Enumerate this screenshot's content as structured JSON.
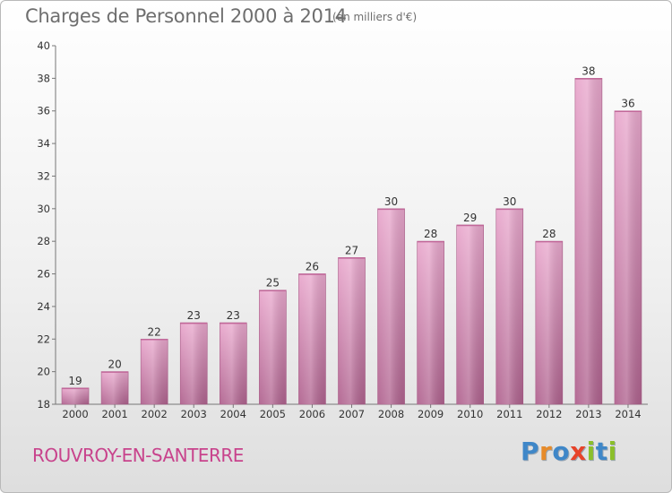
{
  "title": "Charges de Personnel 2000 à 2014",
  "unit_note": "(en milliers d'€)",
  "commune": "ROUVROY-EN-SANTERRE",
  "logo": {
    "text": "Proxiti",
    "letters": [
      {
        "char": "P",
        "color": "#3f87c8"
      },
      {
        "char": "r",
        "color": "#e78b2a"
      },
      {
        "char": "o",
        "color": "#3f87c8"
      },
      {
        "char": "x",
        "color": "#e7432a"
      },
      {
        "char": "i",
        "color": "#8bbf2a"
      },
      {
        "char": "t",
        "color": "#3f87c8"
      },
      {
        "char": "i",
        "color": "#8bbf2a"
      }
    ]
  },
  "colors": {
    "bar_light": "#e9a8cd",
    "bar_dark": "#b0638f",
    "title": "#6e6e6e",
    "commune": "#c8438c"
  },
  "chart_data": {
    "type": "bar",
    "categories": [
      "2000",
      "2001",
      "2002",
      "2003",
      "2004",
      "2005",
      "2006",
      "2007",
      "2008",
      "2009",
      "2010",
      "2011",
      "2012",
      "2013",
      "2014"
    ],
    "values": [
      19,
      20,
      22,
      23,
      23,
      25,
      26,
      27,
      30,
      28,
      29,
      30,
      28,
      38,
      36
    ],
    "title": "Charges de Personnel 2000 à 2014",
    "xlabel": "",
    "ylabel": "",
    "ylim": [
      18,
      40
    ],
    "yticks": [
      18,
      20,
      22,
      24,
      26,
      28,
      30,
      32,
      34,
      36,
      38,
      40
    ],
    "grid": false,
    "data_labels": true
  }
}
